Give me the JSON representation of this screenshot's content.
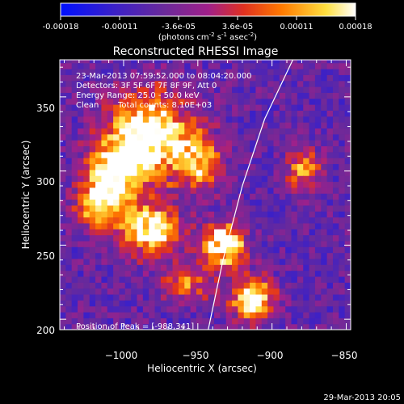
{
  "colorbar": {
    "ticks": [
      "-0.00018",
      "-0.00011",
      "-3.6e-05",
      "3.6e-05",
      "0.00011",
      "0.00018"
    ],
    "units_prefix": "(photons cm",
    "units_exp1": "-2",
    "units_mid": " s",
    "units_exp2": "-1",
    "units_mid2": " asec",
    "units_exp3": "-2",
    "units_suffix": ")",
    "range": [
      -0.00018,
      0.00018
    ]
  },
  "info": {
    "time": "23-Mar-2013 07:59:52.000 to 08:04:20.000",
    "detectors": "Detectors: 3F 5F 6F 7F 8F 9F, Att 0",
    "energy": "Energy Range: 25.0 - 50.0 keV",
    "clean_label": "Clean",
    "total_counts": "Total counts: 8.10E+03",
    "peak": "Position of Peak = [-988,341]"
  },
  "footer": {
    "timestamp": "29-Mar-2013 20:05"
  },
  "chart_data": {
    "type": "heatmap",
    "title": "Reconstructed RHESSI Image",
    "xlabel": "Heliocentric X (arcsec)",
    "ylabel": "Heliocentric Y (arcsec)",
    "xlim": [
      -1043,
      -847
    ],
    "ylim": [
      193,
      375
    ],
    "xticks": [
      -1000,
      -950,
      -900,
      -850
    ],
    "xtick_labels": [
      "−1000",
      "−950",
      "−900",
      "−850"
    ],
    "yticks": [
      200,
      250,
      300,
      350
    ],
    "ytick_labels": [
      "200",
      "250",
      "300",
      "350"
    ],
    "colormap": "blue-purple-red-yellow-white",
    "limb_line": [
      [
        -943,
        193
      ],
      [
        -933,
        240
      ],
      [
        -920,
        290
      ],
      [
        -905,
        335
      ],
      [
        -886,
        375
      ]
    ],
    "bright_regions": [
      {
        "x": -985,
        "y": 320,
        "level": 0.95,
        "sx": 18,
        "sy": 20
      },
      {
        "x": -1010,
        "y": 295,
        "level": 0.7,
        "sx": 12,
        "sy": 15
      },
      {
        "x": -985,
        "y": 258,
        "level": 0.75,
        "sx": 14,
        "sy": 12
      },
      {
        "x": -1020,
        "y": 275,
        "level": 0.5,
        "sx": 10,
        "sy": 12
      },
      {
        "x": -935,
        "y": 248,
        "level": 0.85,
        "sx": 10,
        "sy": 10
      },
      {
        "x": -950,
        "y": 305,
        "level": 0.55,
        "sx": 10,
        "sy": 14
      },
      {
        "x": -915,
        "y": 212,
        "level": 0.85,
        "sx": 10,
        "sy": 10
      },
      {
        "x": -880,
        "y": 300,
        "level": 0.5,
        "sx": 8,
        "sy": 10
      },
      {
        "x": -960,
        "y": 222,
        "level": 0.45,
        "sx": 12,
        "sy": 8
      }
    ]
  }
}
